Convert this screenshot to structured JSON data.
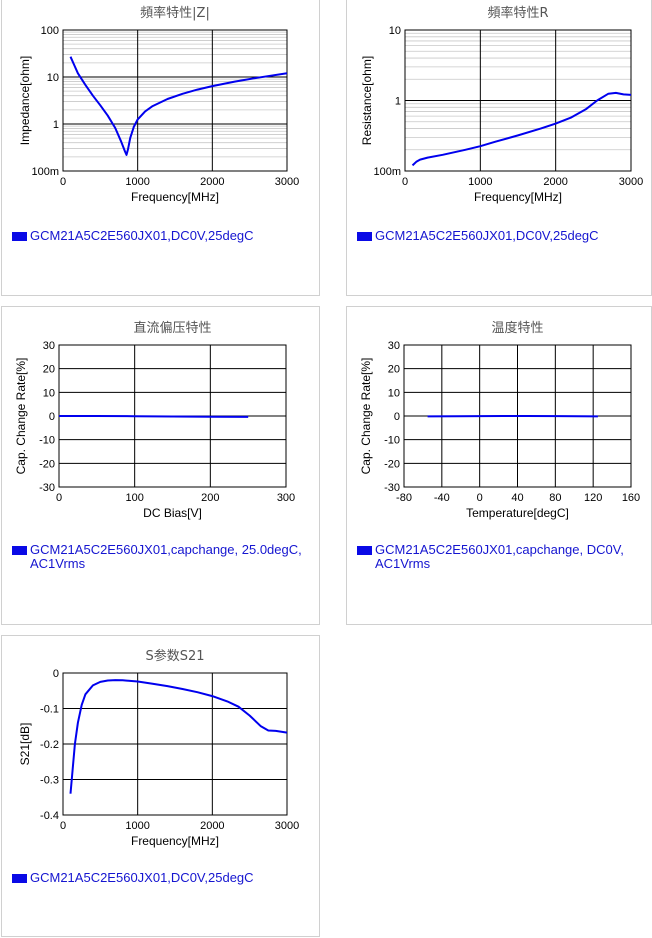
{
  "colors": {
    "line": "#0000ee",
    "grid_major": "#000000",
    "grid_minor": "#c8c8c8",
    "legend_text": "#1515d0"
  },
  "chart_data": [
    {
      "id": "z",
      "type": "line",
      "title": "頻率特性|Z|",
      "xlabel": "Frequency[MHz]",
      "ylabel": "Impedance[ohm]",
      "xlim": [
        0,
        3000
      ],
      "ylim": [
        0.1,
        100
      ],
      "yscale": "log",
      "xticks": [
        0,
        1000,
        2000,
        3000
      ],
      "xtick_labels": [
        "0",
        "1000",
        "2000",
        "3000"
      ],
      "yticks": [
        0.1,
        1,
        10,
        100
      ],
      "ytick_labels": [
        "100m",
        "1",
        "10",
        "100"
      ],
      "grid": true,
      "legend": "GCM21A5C2E560JX01,DC0V,25degC",
      "series": [
        {
          "x": [
            100,
            150,
            200,
            300,
            400,
            500,
            600,
            700,
            780,
            830,
            850,
            870,
            900,
            950,
            1000,
            1100,
            1200,
            1400,
            1600,
            1800,
            2000,
            2300,
            2600,
            3000
          ],
          "y": [
            27,
            18,
            12,
            6.8,
            4.0,
            2.5,
            1.5,
            0.82,
            0.42,
            0.26,
            0.22,
            0.29,
            0.5,
            0.88,
            1.25,
            1.85,
            2.4,
            3.4,
            4.4,
            5.4,
            6.4,
            8.0,
            9.6,
            12
          ]
        }
      ]
    },
    {
      "id": "r",
      "type": "line",
      "title": "頻率特性R",
      "xlabel": "Frequency[MHz]",
      "ylabel": "Resistance[ohm]",
      "xlim": [
        0,
        3000
      ],
      "ylim": [
        0.1,
        10
      ],
      "yscale": "log",
      "xticks": [
        0,
        1000,
        2000,
        3000
      ],
      "xtick_labels": [
        "0",
        "1000",
        "2000",
        "3000"
      ],
      "yticks": [
        0.1,
        1,
        10
      ],
      "ytick_labels": [
        "100m",
        "1",
        "10"
      ],
      "grid": true,
      "legend": "GCM21A5C2E560JX01,DC0V,25degC",
      "series": [
        {
          "x": [
            100,
            150,
            200,
            300,
            500,
            800,
            1000,
            1200,
            1500,
            1800,
            2000,
            2200,
            2400,
            2550,
            2700,
            2800,
            2900,
            3000
          ],
          "y": [
            0.12,
            0.135,
            0.145,
            0.155,
            0.17,
            0.2,
            0.225,
            0.26,
            0.32,
            0.4,
            0.47,
            0.57,
            0.75,
            1.0,
            1.25,
            1.28,
            1.22,
            1.2
          ]
        }
      ]
    },
    {
      "id": "dcbias",
      "type": "line",
      "title": "直流偏压特性",
      "xlabel": "DC Bias[V]",
      "ylabel": "Cap. Change Rate[%]",
      "xlim": [
        0,
        300
      ],
      "ylim": [
        -30,
        30
      ],
      "yscale": "linear",
      "xticks": [
        0,
        100,
        200,
        300
      ],
      "xtick_labels": [
        "0",
        "100",
        "200",
        "300"
      ],
      "yticks": [
        -30,
        -20,
        -10,
        0,
        10,
        20,
        30
      ],
      "ytick_labels": [
        "-30",
        "-20",
        "-10",
        "0",
        "10",
        "20",
        "30"
      ],
      "grid": true,
      "legend": "GCM21A5C2E560JX01,capchange, 25.0degC, AC1Vrms",
      "series": [
        {
          "x": [
            0,
            50,
            100,
            150,
            200,
            250
          ],
          "y": [
            0,
            0,
            -0.1,
            -0.2,
            -0.3,
            -0.4
          ]
        }
      ]
    },
    {
      "id": "temp",
      "type": "line",
      "title": "温度特性",
      "xlabel": "Temperature[degC]",
      "ylabel": "Cap. Change Rate[%]",
      "xlim": [
        -80,
        160
      ],
      "ylim": [
        -30,
        30
      ],
      "yscale": "linear",
      "xticks": [
        -80,
        -40,
        0,
        40,
        80,
        120,
        160
      ],
      "xtick_labels": [
        "-80",
        "-40",
        "0",
        "40",
        "80",
        "120",
        "160"
      ],
      "yticks": [
        -30,
        -20,
        -10,
        0,
        10,
        20,
        30
      ],
      "ytick_labels": [
        "-30",
        "-20",
        "-10",
        "0",
        "10",
        "20",
        "30"
      ],
      "grid": true,
      "legend": "GCM21A5C2E560JX01,capchange, DC0V, AC1Vrms",
      "series": [
        {
          "x": [
            -55,
            -25,
            0,
            25,
            50,
            85,
            105,
            125
          ],
          "y": [
            -0.15,
            -0.1,
            -0.05,
            0,
            0,
            -0.05,
            -0.1,
            -0.15
          ]
        }
      ]
    },
    {
      "id": "s21",
      "type": "line",
      "title": "S参数S21",
      "xlabel": "Frequency[MHz]",
      "ylabel": "S21[dB]",
      "xlim": [
        0,
        3000
      ],
      "ylim": [
        -0.4,
        0
      ],
      "yscale": "linear",
      "xticks": [
        0,
        1000,
        2000,
        3000
      ],
      "xtick_labels": [
        "0",
        "1000",
        "2000",
        "3000"
      ],
      "yticks": [
        -0.4,
        -0.3,
        -0.2,
        -0.1,
        0
      ],
      "ytick_labels": [
        "-0.4",
        "-0.3",
        "-0.2",
        "-0.1",
        "0"
      ],
      "grid": true,
      "legend": "GCM21A5C2E560JX01,DC0V,25degC",
      "series": [
        {
          "x": [
            100,
            130,
            160,
            200,
            250,
            300,
            400,
            500,
            600,
            700,
            800,
            1000,
            1200,
            1400,
            1600,
            1800,
            2000,
            2200,
            2350,
            2500,
            2650,
            2750,
            2850,
            3000
          ],
          "y": [
            -0.34,
            -0.27,
            -0.2,
            -0.14,
            -0.09,
            -0.06,
            -0.035,
            -0.025,
            -0.021,
            -0.02,
            -0.0205,
            -0.024,
            -0.03,
            -0.037,
            -0.045,
            -0.054,
            -0.065,
            -0.08,
            -0.095,
            -0.12,
            -0.15,
            -0.162,
            -0.163,
            -0.168
          ]
        }
      ]
    }
  ]
}
